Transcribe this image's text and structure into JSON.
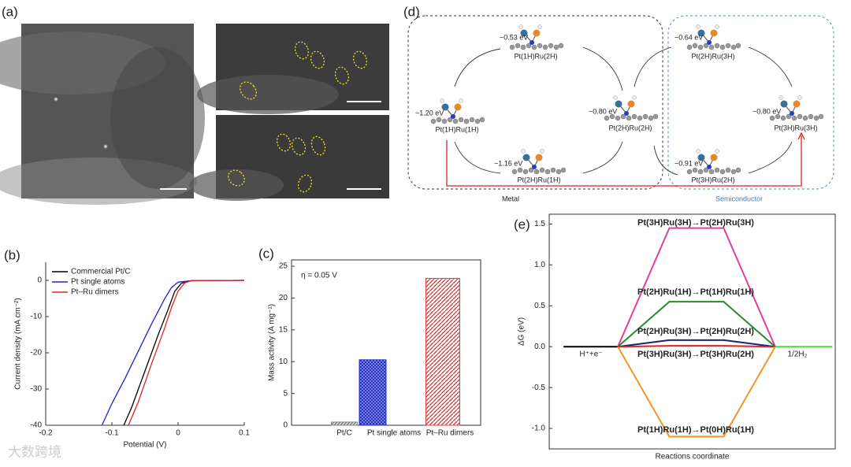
{
  "panel_labels": [
    "(a)",
    "(b)",
    "(c)",
    "(d)",
    "(e)"
  ],
  "scheme": {
    "states": [
      {
        "energy": "−0.53 eV",
        "label": "Pt(1H)Ru(2H)"
      },
      {
        "energy": "−1.20 eV",
        "label": "Pt(1H)Ru(1H)"
      },
      {
        "energy": "−0.80 eV",
        "label": "Pt(2H)Ru(2H)"
      },
      {
        "energy": "−1.16 eV",
        "label": "Pt(2H)Ru(1H)"
      },
      {
        "energy": "−0.64 eV",
        "label": "Pt(2H)Ru(3H)"
      },
      {
        "energy": "−0.80 eV",
        "label": "Pt(3H)Ru(3H)"
      },
      {
        "energy": "−0.91 eV",
        "label": "Pt(3H)Ru(2H)"
      }
    ],
    "groups": [
      "Metal",
      "Semiconductor"
    ]
  },
  "watermark": "大数跨境",
  "chart_data": [
    {
      "type": "line",
      "xlabel": "Potential (V)",
      "ylabel": "Current density (mA cm⁻²)",
      "xlim": [
        -0.2,
        0.1
      ],
      "xticks": [
        -0.2,
        -0.1,
        0,
        0.1
      ],
      "ylim": [
        -40,
        5
      ],
      "yticks": [
        0,
        -10,
        -20,
        -30,
        -40
      ],
      "legend": "upper left",
      "series": [
        {
          "name": "Commercial Pt/C",
          "color": "#000000",
          "x": [
            -0.082,
            -0.07,
            -0.05,
            -0.03,
            -0.015,
            -0.005,
            0.005,
            0.02,
            0.1
          ],
          "values": [
            -40,
            -35,
            -25,
            -15,
            -8,
            -3,
            -0.8,
            -0.1,
            0
          ]
        },
        {
          "name": "Pt single atoms",
          "color": "#2222cc",
          "x": [
            -0.115,
            -0.1,
            -0.08,
            -0.06,
            -0.04,
            -0.02,
            -0.01,
            0,
            0.02,
            0.1
          ],
          "values": [
            -40,
            -34,
            -27,
            -19.5,
            -12,
            -5,
            -2,
            -0.5,
            -0.1,
            0
          ]
        },
        {
          "name": "Pt–Ru dimers",
          "color": "#dd2222",
          "x": [
            -0.075,
            -0.06,
            -0.04,
            -0.02,
            -0.01,
            0,
            0.01,
            0.02,
            0.1
          ],
          "values": [
            -40,
            -33.5,
            -23,
            -13,
            -7.5,
            -3,
            -0.7,
            -0.1,
            0
          ]
        }
      ]
    },
    {
      "type": "bar",
      "ylabel": "Mass activity (A mg⁻¹)",
      "annotation": "η = 0.05 V",
      "categories": [
        "Pt/C",
        "Pt single atoms",
        "Pt–Ru dimers"
      ],
      "values": [
        0.5,
        10.3,
        23.1
      ],
      "colors": [
        "#888888",
        "#2233dd",
        "#dd4444"
      ],
      "ylim": [
        0,
        26
      ],
      "yticks": [
        0,
        5,
        10,
        15,
        20,
        25
      ]
    },
    {
      "type": "line",
      "xlabel": "Reactions coordinate",
      "ylabel": "ΔG (eV)",
      "xlim": [
        0,
        10
      ],
      "ylim": [
        -1.25,
        1.62
      ],
      "yticks": [
        1.5,
        {
          "value": 1,
          "label": "1.0"
        },
        0.5,
        {
          "value": 0,
          "label": "0.0"
        },
        -0.5,
        {
          "value": -1,
          "label": "-1.0"
        }
      ],
      "series": [
        {
          "name": "H⁺+e⁻",
          "color": "#000000",
          "x": [
            0.5,
            2.4
          ],
          "values": [
            0,
            0
          ]
        },
        {
          "name": "1/2H₂",
          "color": "#44dd44",
          "x": [
            7.9,
            9.9
          ],
          "values": [
            0,
            0
          ]
        },
        {
          "name": "Pt(3H)Ru(3H)→Pt(2H)Ru(3H)",
          "color": "#e0409a",
          "x": [
            2.4,
            4.2,
            6.1,
            7.9
          ],
          "values": [
            0,
            1.45,
            1.45,
            0
          ]
        },
        {
          "name": "Pt(2H)Ru(1H)→Pt(1H)Ru(1H)",
          "color": "#2a8a2a",
          "x": [
            2.4,
            4.2,
            6.1,
            7.9
          ],
          "values": [
            0,
            0.55,
            0.55,
            0
          ]
        },
        {
          "name": "Pt(2H)Ru(3H)→Pt(2H)Ru(2H)",
          "color": "#1a237e",
          "x": [
            2.4,
            4.2,
            6.1,
            7.9
          ],
          "values": [
            0,
            0.08,
            0.08,
            0
          ]
        },
        {
          "name": "Pt(3H)Ru(3H)→Pt(3H)Ru(2H)",
          "color": "#dd2222",
          "x": [
            2.4,
            4.2,
            6.1,
            7.9
          ],
          "values": [
            0,
            0.01,
            0.01,
            0
          ]
        },
        {
          "name": "Pt(1H)Ru(1H)→Pt(0H)Ru(1H)",
          "color": "#f0962a",
          "x": [
            2.4,
            4.2,
            6.1,
            7.9
          ],
          "values": [
            0,
            -1.1,
            -1.1,
            0
          ]
        }
      ]
    }
  ]
}
